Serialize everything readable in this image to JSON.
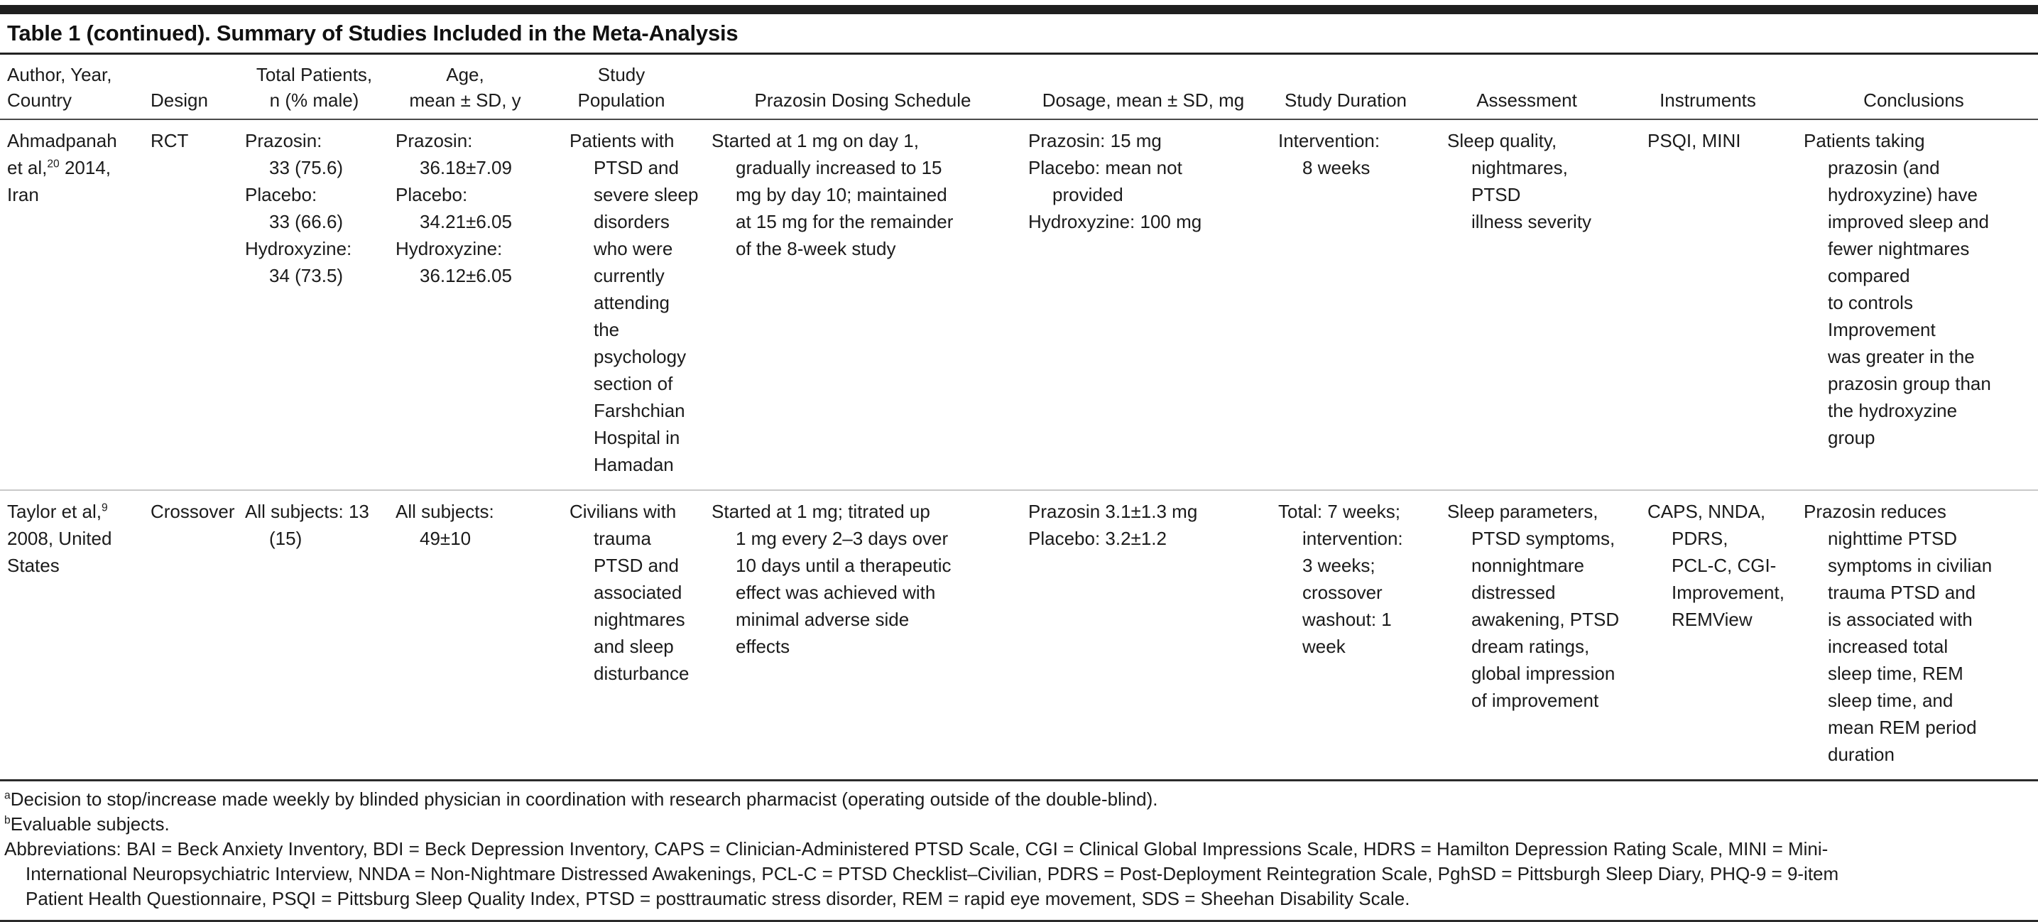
{
  "title": "Table 1 (continued). Summary of Studies Included in the Meta-Analysis",
  "columns": [
    "Author, Year,\nCountry",
    "Design",
    "Total Patients,\nn (% male)",
    "Age,\nmean ± SD, y",
    "Study\nPopulation",
    "Prazosin Dosing Schedule",
    "Dosage, mean ± SD, mg",
    "Study Duration",
    "Assessment",
    "Instruments",
    "Conclusions"
  ],
  "rows": [
    {
      "author": {
        "pre": "Ahmadpanah\net al,",
        "sup": "20",
        "post": " 2014,\nIran"
      },
      "design": "RCT",
      "total_patients": [
        "Prazosin:\n33 (75.6)",
        "Placebo:\n33 (66.6)",
        "Hydroxyzine:\n34 (73.5)"
      ],
      "age": [
        "Prazosin:\n36.18±7.09",
        "Placebo:\n34.21±6.05",
        "Hydroxyzine:\n36.12±6.05"
      ],
      "population": [
        "Patients with\nPTSD and\nsevere sleep\ndisorders\nwho were\ncurrently\nattending the\npsychology\nsection of\nFarshchian\nHospital in\nHamadan"
      ],
      "dosing_schedule": [
        "Started at 1 mg on day 1,\ngradually increased to 15\nmg by day 10; maintained\nat 15 mg for the remainder\nof the 8-week study"
      ],
      "dosage": [
        "Prazosin: 15 mg",
        "Placebo: mean not\nprovided",
        "Hydroxyzine: 100 mg"
      ],
      "duration": [
        "Intervention:\n8 weeks"
      ],
      "assessment": [
        "Sleep quality,\nnightmares, PTSD\nillness severity"
      ],
      "instruments": [
        "PSQI, MINI"
      ],
      "conclusions": [
        "Patients taking\nprazosin (and\nhydroxyzine) have\nimproved sleep and\nfewer nightmares\ncompared\nto controls\nImprovement\nwas greater in the\nprazosin group than\nthe hydroxyzine\ngroup"
      ]
    },
    {
      "author": {
        "pre": "Taylor et al,",
        "sup": "9",
        "post": "\n2008, United\nStates"
      },
      "design": "Crossover",
      "total_patients": [
        "All subjects: 13\n(15)"
      ],
      "age": [
        "All subjects:\n49±10"
      ],
      "population": [
        "Civilians with\ntrauma\nPTSD and\nassociated\nnightmares\nand sleep\ndisturbance"
      ],
      "dosing_schedule": [
        "Started at 1 mg; titrated up\n1 mg every 2–3 days over\n10 days until a therapeutic\neffect was achieved with\nminimal adverse side\neffects"
      ],
      "dosage": [
        "Prazosin 3.1±1.3 mg",
        "Placebo: 3.2±1.2"
      ],
      "duration": [
        "Total: 7 weeks;\nintervention:\n3 weeks;\ncrossover\nwashout: 1\nweek"
      ],
      "assessment": [
        "Sleep parameters,\nPTSD symptoms,\nnonnightmare\ndistressed\nawakening, PTSD\ndream ratings,\nglobal impression\nof improvement"
      ],
      "instruments": [
        "CAPS, NNDA,\nPDRS,\nPCL-C, CGI-\nImprovement,\nREMView"
      ],
      "conclusions": [
        "Prazosin reduces\nnighttime PTSD\nsymptoms in civilian\ntrauma PTSD and\nis associated with\nincreased total\nsleep time, REM\nsleep time, and\nmean REM period\nduration"
      ]
    }
  ],
  "footnotes": [
    {
      "sup": "a",
      "text": "Decision to stop/increase made weekly by blinded physician in coordination with research pharmacist (operating outside of the double-blind)."
    },
    {
      "sup": "b",
      "text": "Evaluable subjects."
    }
  ],
  "abbreviations": "Abbreviations: BAI = Beck Anxiety Inventory, BDI = Beck Depression Inventory, CAPS = Clinician-Administered PTSD Scale, CGI = Clinical Global Impressions Scale, HDRS = Hamilton Depression Rating Scale, MINI = Mini-\nInternational Neuropsychiatric Interview, NNDA = Non-Nightmare Distressed Awakenings, PCL-C = PTSD Checklist–Civilian, PDRS = Post-Deployment Reintegration Scale, PghSD = Pittsburgh Sleep Diary, PHQ-9 = 9-item\nPatient Health Questionnaire, PSQI = Pittsburg Sleep Quality Index, PTSD = posttraumatic stress disorder, REM = rapid eye movement, SDS = Sheehan Disability Scale."
}
